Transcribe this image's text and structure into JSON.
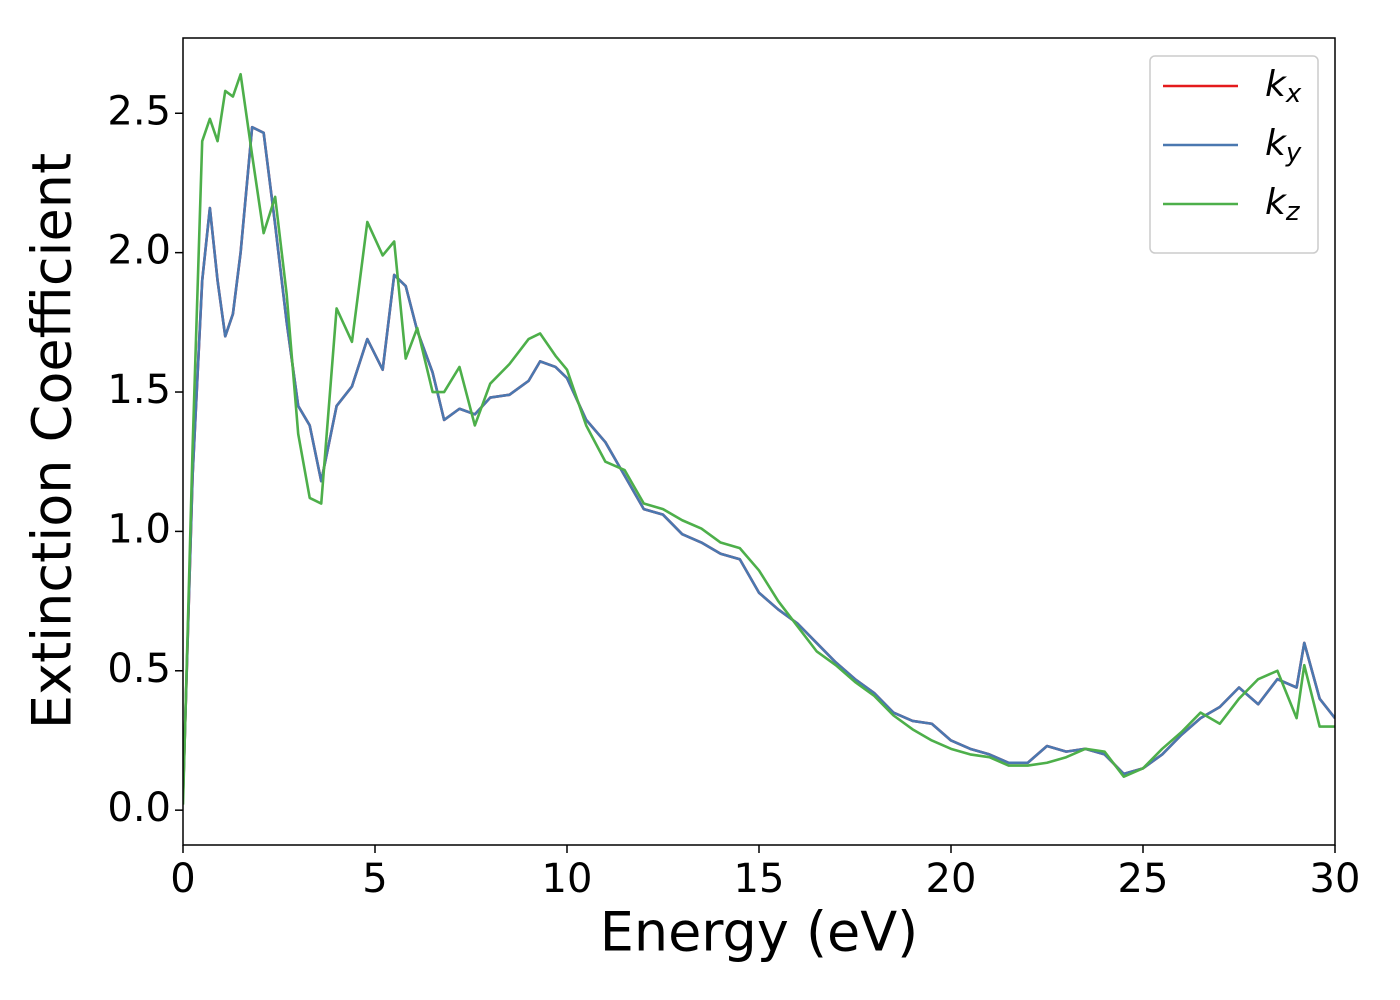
{
  "chart_data": {
    "type": "line",
    "xlabel": "Energy (eV)",
    "ylabel": "Extinction Coefficient",
    "xlim": [
      0,
      30
    ],
    "ylim": [
      -0.125,
      2.77
    ],
    "xticks": [
      0,
      5,
      10,
      15,
      20,
      25,
      30
    ],
    "yticks": [
      {
        "value": 0,
        "label": "0.0"
      },
      0.5,
      {
        "value": 1,
        "label": "1.0"
      },
      1.5,
      {
        "value": 2,
        "label": "2.0"
      },
      2.5
    ],
    "legend": "upper right",
    "x": [
      0,
      0.25,
      0.5,
      0.7,
      0.9,
      1.1,
      1.3,
      1.5,
      1.8,
      2.1,
      2.4,
      2.7,
      3.0,
      3.3,
      3.6,
      4.0,
      4.4,
      4.8,
      5.2,
      5.5,
      5.8,
      6.1,
      6.5,
      6.8,
      7.2,
      7.6,
      8.0,
      8.5,
      9.0,
      9.3,
      9.7,
      10.0,
      10.5,
      11,
      11.5,
      12,
      12.5,
      13,
      13.5,
      14,
      14.5,
      15,
      15.5,
      16,
      16.5,
      17,
      17.5,
      18,
      18.5,
      19,
      19.5,
      20,
      20.5,
      21,
      21.5,
      22,
      22.5,
      23,
      23.5,
      24,
      24.5,
      25,
      25.5,
      26,
      26.5,
      27,
      27.5,
      28,
      28.5,
      29,
      29.2,
      29.6,
      30
    ],
    "series": [
      {
        "name": "kx",
        "color": "#e41a1c",
        "values": [
          0.05,
          1.2,
          1.9,
          2.16,
          1.9,
          1.7,
          1.78,
          2.0,
          2.45,
          2.43,
          2.1,
          1.75,
          1.45,
          1.38,
          1.18,
          1.45,
          1.52,
          1.69,
          1.58,
          1.92,
          1.88,
          1.72,
          1.57,
          1.4,
          1.44,
          1.42,
          1.48,
          1.49,
          1.54,
          1.61,
          1.59,
          1.55,
          1.4,
          1.32,
          1.2,
          1.08,
          1.06,
          0.99,
          0.96,
          0.92,
          0.9,
          0.78,
          0.72,
          0.67,
          0.6,
          0.53,
          0.47,
          0.42,
          0.35,
          0.32,
          0.31,
          0.25,
          0.22,
          0.2,
          0.17,
          0.17,
          0.23,
          0.21,
          0.22,
          0.2,
          0.13,
          0.15,
          0.2,
          0.27,
          0.33,
          0.37,
          0.44,
          0.38,
          0.47,
          0.44,
          0.6,
          0.4,
          0.33
        ]
      },
      {
        "name": "ky",
        "color": "#4a78b0",
        "values": [
          0.05,
          1.2,
          1.9,
          2.16,
          1.9,
          1.7,
          1.78,
          2.0,
          2.45,
          2.43,
          2.1,
          1.75,
          1.45,
          1.38,
          1.18,
          1.45,
          1.52,
          1.69,
          1.58,
          1.92,
          1.88,
          1.72,
          1.57,
          1.4,
          1.44,
          1.42,
          1.48,
          1.49,
          1.54,
          1.61,
          1.59,
          1.55,
          1.4,
          1.32,
          1.2,
          1.08,
          1.06,
          0.99,
          0.96,
          0.92,
          0.9,
          0.78,
          0.72,
          0.67,
          0.6,
          0.53,
          0.47,
          0.42,
          0.35,
          0.32,
          0.31,
          0.25,
          0.22,
          0.2,
          0.17,
          0.17,
          0.23,
          0.21,
          0.22,
          0.2,
          0.13,
          0.15,
          0.2,
          0.27,
          0.33,
          0.37,
          0.44,
          0.38,
          0.47,
          0.44,
          0.6,
          0.4,
          0.33
        ]
      },
      {
        "name": "kz",
        "color": "#4daf4a",
        "values": [
          0.02,
          1.3,
          2.4,
          2.48,
          2.4,
          2.58,
          2.56,
          2.64,
          2.35,
          2.07,
          2.2,
          1.85,
          1.35,
          1.12,
          1.1,
          1.8,
          1.68,
          2.11,
          1.99,
          2.04,
          1.62,
          1.73,
          1.5,
          1.5,
          1.59,
          1.38,
          1.53,
          1.6,
          1.69,
          1.71,
          1.63,
          1.58,
          1.38,
          1.25,
          1.22,
          1.1,
          1.08,
          1.04,
          1.01,
          0.96,
          0.94,
          0.86,
          0.75,
          0.66,
          0.57,
          0.52,
          0.46,
          0.41,
          0.34,
          0.29,
          0.25,
          0.22,
          0.2,
          0.19,
          0.16,
          0.16,
          0.17,
          0.19,
          0.22,
          0.21,
          0.12,
          0.15,
          0.22,
          0.28,
          0.35,
          0.31,
          0.4,
          0.47,
          0.5,
          0.33,
          0.52,
          0.3,
          0.3
        ]
      }
    ]
  }
}
